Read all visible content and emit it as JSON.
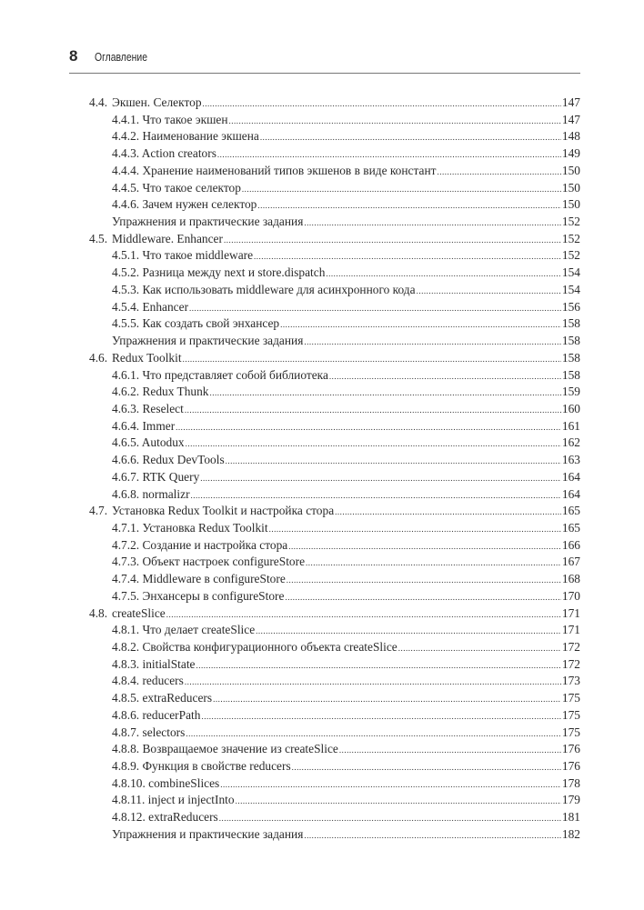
{
  "header": {
    "page_number": "8",
    "title": "Оглавление"
  },
  "toc": [
    {
      "level": 1,
      "num": "4.4.",
      "title": "Экшен. Селектор",
      "page": "147"
    },
    {
      "level": 2,
      "title": "4.4.1. Что такое экшен",
      "page": "147"
    },
    {
      "level": 2,
      "title": "4.4.2. Наименование экшена",
      "page": "148"
    },
    {
      "level": 2,
      "title": "4.4.3. Action creators",
      "page": "149"
    },
    {
      "level": 2,
      "title": "4.4.4. Хранение наименований типов экшенов в виде констант",
      "page": "150"
    },
    {
      "level": 2,
      "title": "4.4.5. Что такое селектор",
      "page": "150"
    },
    {
      "level": 2,
      "title": "4.4.6. Зачем нужен селектор",
      "page": "150"
    },
    {
      "level": 2,
      "title": "Упражнения и практические задания",
      "page": "152"
    },
    {
      "level": 1,
      "num": "4.5.",
      "title": "Middleware. Enhancer",
      "page": "152"
    },
    {
      "level": 2,
      "title": "4.5.1. Что такое middleware",
      "page": "152"
    },
    {
      "level": 2,
      "title": "4.5.2. Разница между next и store.dispatch",
      "page": "154"
    },
    {
      "level": 2,
      "title": "4.5.3. Как использовать middleware для асинхронного кода",
      "page": "154"
    },
    {
      "level": 2,
      "title": "4.5.4. Enhancer",
      "page": "156"
    },
    {
      "level": 2,
      "title": "4.5.5. Как создать свой энхансер",
      "page": "158"
    },
    {
      "level": 2,
      "title": "Упражнения и практические задания",
      "page": "158"
    },
    {
      "level": 1,
      "num": "4.6.",
      "title": "Redux Toolkit",
      "page": "158"
    },
    {
      "level": 2,
      "title": "4.6.1. Что представляет собой библиотека",
      "page": "158"
    },
    {
      "level": 2,
      "title": "4.6.2. Redux Thunk",
      "page": "159"
    },
    {
      "level": 2,
      "title": "4.6.3. Reselect",
      "page": "160"
    },
    {
      "level": 2,
      "title": "4.6.4. Immer",
      "page": "161"
    },
    {
      "level": 2,
      "title": "4.6.5. Autodux",
      "page": "162"
    },
    {
      "level": 2,
      "title": "4.6.6. Redux DevTools",
      "page": "163"
    },
    {
      "level": 2,
      "title": "4.6.7. RTK Query",
      "page": "164"
    },
    {
      "level": 2,
      "title": "4.6.8. normalizr",
      "page": "164"
    },
    {
      "level": 1,
      "num": "4.7.",
      "title": "Установка Redux Toolkit и настройка стора",
      "page": "165"
    },
    {
      "level": 2,
      "title": "4.7.1. Установка Redux Toolkit",
      "page": "165"
    },
    {
      "level": 2,
      "title": "4.7.2. Создание и настройка стора",
      "page": "166"
    },
    {
      "level": 2,
      "title": "4.7.3. Объект настроек configureStore",
      "page": "167"
    },
    {
      "level": 2,
      "title": "4.7.4. Middleware в configureStore",
      "page": "168"
    },
    {
      "level": 2,
      "title": "4.7.5. Энхансеры в configureStore",
      "page": "170"
    },
    {
      "level": 1,
      "num": "4.8.",
      "title": "createSlice",
      "page": "171"
    },
    {
      "level": 2,
      "title": "4.8.1. Что делает createSlice",
      "page": "171"
    },
    {
      "level": 2,
      "title": "4.8.2. Свойства конфигурационного объекта createSlice",
      "page": "172"
    },
    {
      "level": 2,
      "title": "4.8.3. initialState",
      "page": "172"
    },
    {
      "level": 2,
      "title": "4.8.4. reducers",
      "page": "173"
    },
    {
      "level": 2,
      "title": "4.8.5. extraReducers",
      "page": "175"
    },
    {
      "level": 2,
      "title": "4.8.6. reducerPath",
      "page": "175"
    },
    {
      "level": 2,
      "title": "4.8.7. selectors",
      "page": "175"
    },
    {
      "level": 2,
      "title": "4.8.8. Возвращаемое значение из createSlice",
      "page": "176"
    },
    {
      "level": 2,
      "title": "4.8.9. Функция в свойстве reducers",
      "page": "176"
    },
    {
      "level": 2,
      "title": "4.8.10. combineSlices",
      "page": "178"
    },
    {
      "level": 2,
      "title": "4.8.11. inject и injectInto",
      "page": "179"
    },
    {
      "level": 2,
      "title": "4.8.12. extraReducers",
      "page": "181"
    },
    {
      "level": 2,
      "title": "Упражнения и практические задания",
      "page": "182"
    }
  ]
}
